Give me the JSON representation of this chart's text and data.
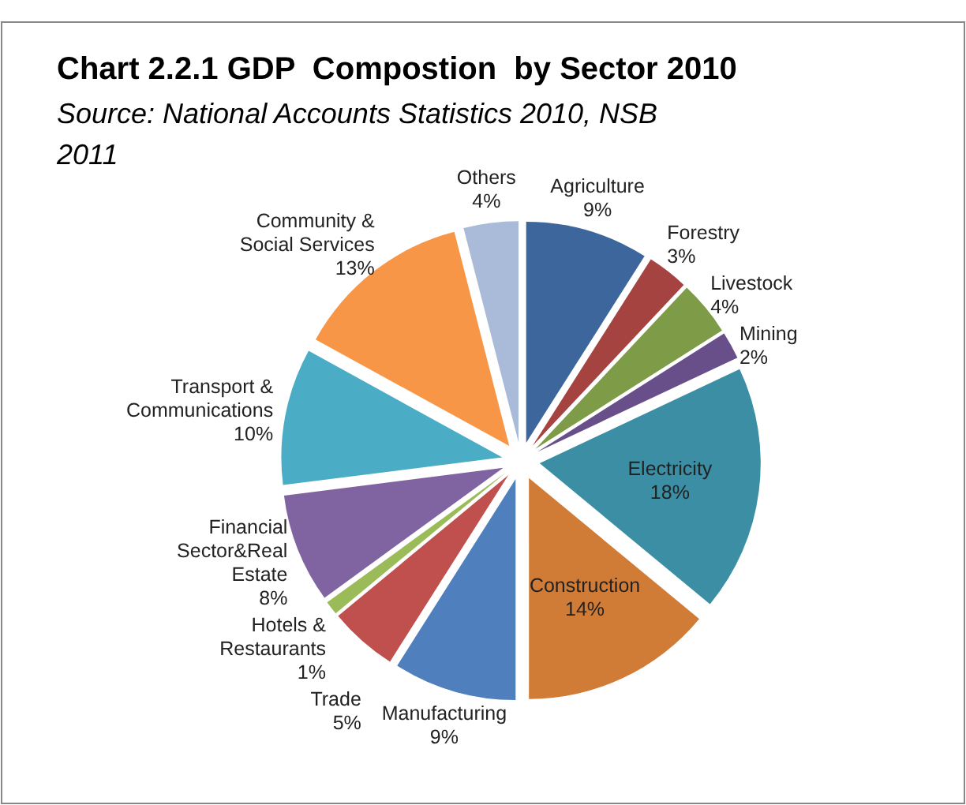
{
  "chart_data": {
    "type": "pie",
    "title": "Chart 2.2.1 GDP  Compostion  by Sector 2010",
    "subtitle": "Source: National Accounts Statistics 2010, NSB 2011",
    "categories": [
      "Agriculture",
      "Forestry",
      "Livestock",
      "Mining",
      "Electricity",
      "Construction",
      "Manufacturing",
      "Trade",
      "Hotels & Restaurants",
      "Financial Sector&Real Estate",
      "Transport & Communications",
      "Community & Social Services",
      "Others"
    ],
    "values": [
      9,
      3,
      4,
      2,
      18,
      14,
      9,
      5,
      1,
      8,
      10,
      13,
      4
    ],
    "value_labels": [
      "9%",
      "3%",
      "4%",
      "2%",
      "18%",
      "14%",
      "9%",
      "5%",
      "1%",
      "8%",
      "10%",
      "13%",
      "4%"
    ],
    "colors": [
      "#3d679c",
      "#a54340",
      "#7e9c48",
      "#684f8a",
      "#3b8ea3",
      "#d07c37",
      "#4f80bd",
      "#c0504d",
      "#9bbb59",
      "#8064a2",
      "#4bacc6",
      "#f79646",
      "#a9bbd9"
    ],
    "legend": false
  }
}
